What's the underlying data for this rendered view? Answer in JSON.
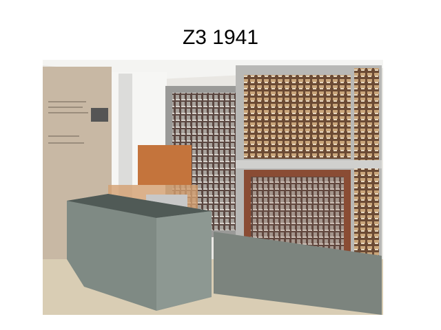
{
  "title": "Z3 1941"
}
